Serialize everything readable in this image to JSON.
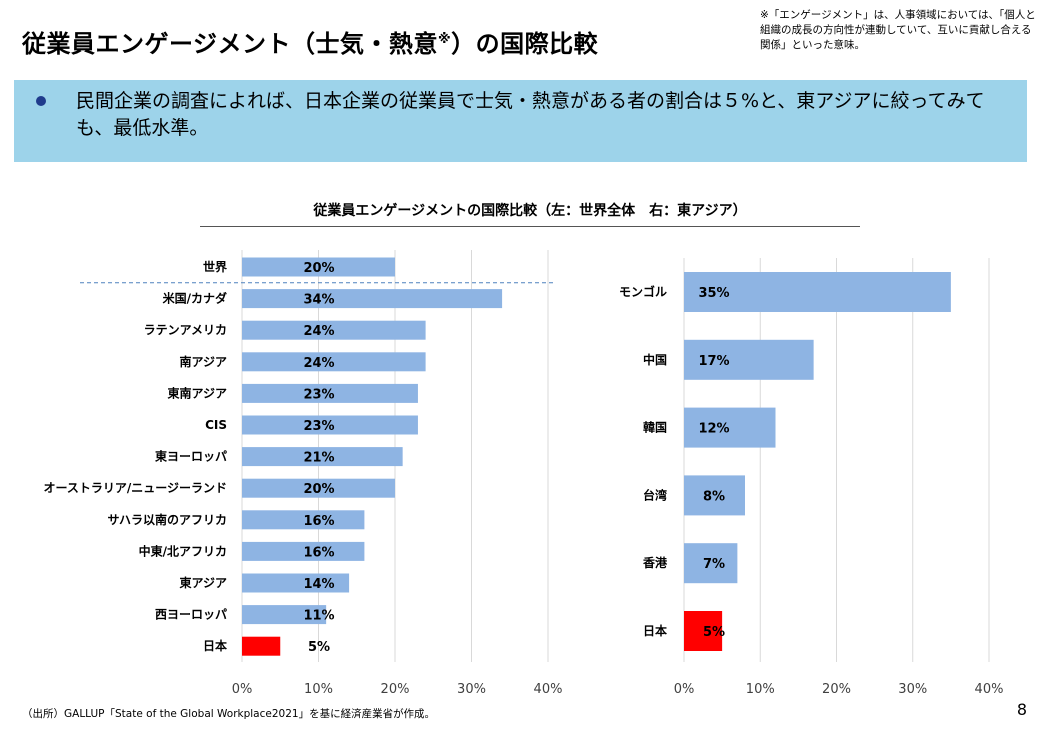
{
  "header": {
    "title_main": "従業員エンゲージメント（士気・熱意",
    "title_sup": "※",
    "title_tail": "）の国際比較",
    "note": "※「エンゲージメント」は、人事領域においては、「個人と組織の成長の方向性が連動していて、互いに貢献し合える関係」といった意味。"
  },
  "banner": {
    "text": "民間企業の調査によれば、日本企業の従業員で士気・熱意がある者の割合は５%と、東アジアに絞ってみても、最低水準。"
  },
  "footer": {
    "source": "（出所）GALLUP「State of the Global Workplace2021」を基に経済産業省が作成。",
    "page_number": "8"
  },
  "colors": {
    "bar": "#8eb4e3",
    "highlight": "#ff0000",
    "banner": "#9dd3ea",
    "bullet": "#1f3b8c"
  },
  "chart_data": [
    {
      "type": "bar",
      "orientation": "horizontal",
      "title": "従業員エンゲージメントの国際比較（左：世界全体　右：東アジア）",
      "categories": [
        "世界",
        "米国/カナダ",
        "ラテンアメリカ",
        "南アジア",
        "東南アジア",
        "CIS",
        "東ヨーロッパ",
        "オーストラリア/ニュージーランド",
        "サハラ以南のアフリカ",
        "中東/北アフリカ",
        "東アジア",
        "西ヨーロッパ",
        "日本"
      ],
      "values": [
        20,
        34,
        24,
        24,
        23,
        23,
        21,
        20,
        16,
        16,
        14,
        11,
        5
      ],
      "labels": [
        "20%",
        "34%",
        "24%",
        "24%",
        "23%",
        "23%",
        "21%",
        "20%",
        "16%",
        "16%",
        "14%",
        "11%",
        "5%"
      ],
      "highlight": "日本",
      "xlim": [
        0,
        40
      ],
      "ticks": [
        "0%",
        "10%",
        "20%",
        "30%",
        "40%"
      ],
      "grid": true
    },
    {
      "type": "bar",
      "orientation": "horizontal",
      "categories": [
        "モンゴル",
        "中国",
        "韓国",
        "台湾",
        "香港",
        "日本"
      ],
      "values": [
        35,
        17,
        12,
        8,
        7,
        5
      ],
      "labels": [
        "35%",
        "17%",
        "12%",
        "8%",
        "7%",
        "5%"
      ],
      "highlight": "日本",
      "xlim": [
        0,
        40
      ],
      "ticks": [
        "0%",
        "10%",
        "20%",
        "30%",
        "40%"
      ],
      "grid": true
    }
  ]
}
